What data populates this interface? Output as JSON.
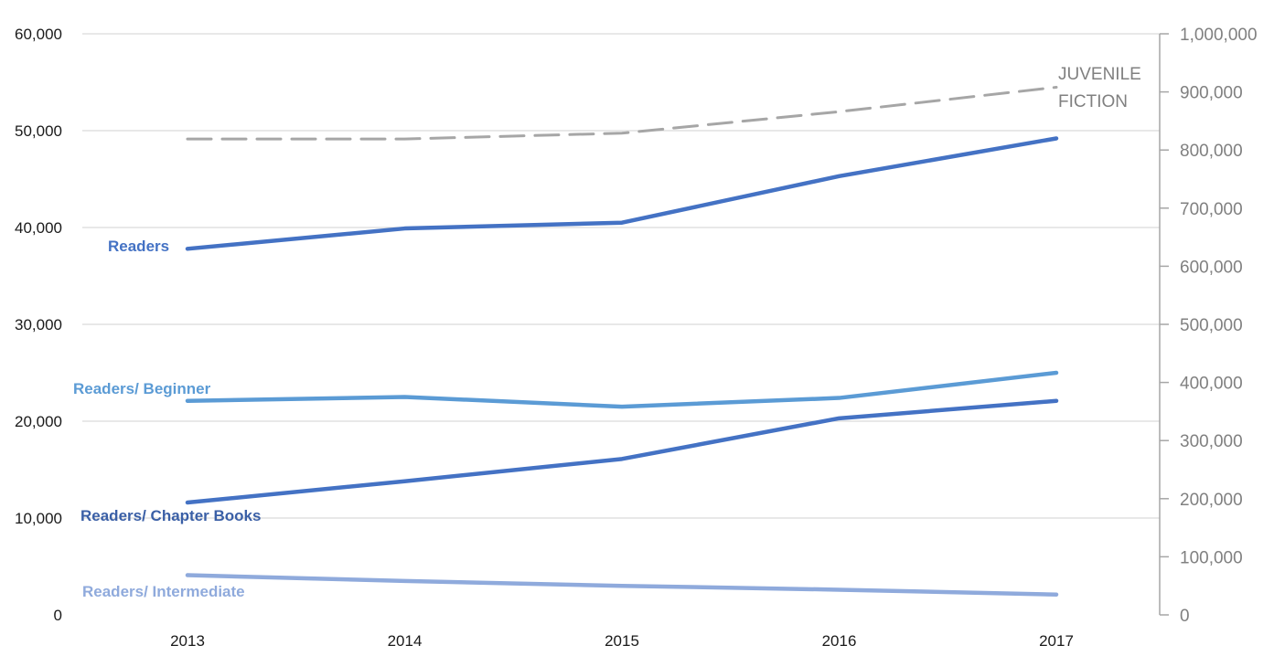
{
  "chart_data": {
    "type": "line",
    "categories": [
      "2013",
      "2014",
      "2015",
      "2016",
      "2017"
    ],
    "y_left": {
      "ylim": [
        0,
        60000
      ],
      "ticks": [
        0,
        10000,
        20000,
        30000,
        40000,
        50000,
        60000
      ],
      "tick_labels": [
        "0",
        "10,000",
        "20,000",
        "30,000",
        "40,000",
        "50,000",
        "60,000"
      ]
    },
    "y_right": {
      "ylim": [
        0,
        1000000
      ],
      "ticks": [
        0,
        100000,
        200000,
        300000,
        400000,
        500000,
        600000,
        700000,
        800000,
        900000,
        1000000
      ],
      "tick_labels": [
        "0",
        "100,000",
        "200,000",
        "300,000",
        "400,000",
        "500,000",
        "600,000",
        "700,000",
        "800,000",
        "900,000",
        "1,000,000"
      ]
    },
    "grid": true,
    "legend": "none (direct labels)",
    "series": [
      {
        "name": "Readers",
        "axis": "left",
        "color": "#4472c4",
        "style": "solid",
        "values": [
          37800,
          39900,
          40500,
          45300,
          49200
        ]
      },
      {
        "name": "Readers/ Beginner",
        "axis": "left",
        "color": "#5b9bd5",
        "style": "solid",
        "values": [
          22100,
          22500,
          21500,
          22400,
          25000
        ]
      },
      {
        "name": "Readers/ Chapter Books",
        "axis": "left",
        "color": "#4472c4",
        "style": "solid",
        "values": [
          11600,
          13800,
          16100,
          20300,
          22100
        ]
      },
      {
        "name": "Readers/ Intermediate",
        "axis": "left",
        "color": "#8faadc",
        "style": "solid",
        "values": [
          4100,
          3500,
          3000,
          2600,
          2100
        ]
      },
      {
        "name": "JUVENILE FICTION",
        "axis": "right",
        "color": "#a6a6a6",
        "style": "dashed",
        "values": [
          819000,
          819000,
          829000,
          866000,
          908000
        ]
      }
    ],
    "label_lines": {
      "Readers": [
        "Readers"
      ],
      "Readers/ Beginner": [
        "Readers/ Beginner"
      ],
      "Readers/ Chapter Books": [
        "Readers/ Chapter Books"
      ],
      "Readers/ Intermediate": [
        "Readers/ Intermediate"
      ],
      "JUVENILE FICTION": [
        "JUVENILE",
        "FICTION"
      ]
    }
  }
}
